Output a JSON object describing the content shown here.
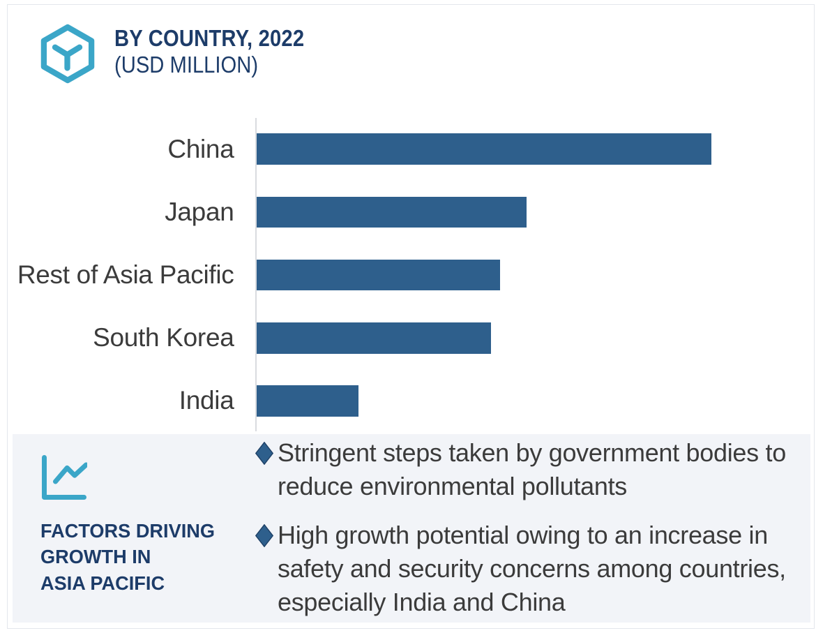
{
  "header": {
    "title": "BY COUNTRY, 2022",
    "subtitle": "(USD MILLION)",
    "icon": "hexagon-cube-icon",
    "title_color": "#1d3c69",
    "icon_color": "#3ba6c8"
  },
  "chart_data": {
    "type": "bar",
    "orientation": "horizontal",
    "title": "BY COUNTRY, 2022",
    "subtitle": "(USD MILLION)",
    "unit": "USD Million",
    "categories": [
      "China",
      "Japan",
      "Rest of Asia Pacific",
      "South Korea",
      "India"
    ],
    "values_relative_pct": [
      100,
      59.4,
      53.6,
      51.6,
      22.4
    ],
    "value_labels_shown": false,
    "axis_tick_labels_shown": false,
    "grid": false,
    "legend": false,
    "bar_color": "#2e5f8c",
    "label_color": "#3b3b3b"
  },
  "footer": {
    "icon": "line-chart-icon",
    "icon_color": "#3ba6c8",
    "background_color": "#f2f4f8",
    "title_lines": [
      "FACTORS DRIVING",
      "GROWTH IN",
      "ASIA PACIFIC"
    ],
    "title_color": "#1d3c69",
    "bullet_marker": "diamond",
    "bullet_marker_color": "#2e5f8c",
    "bullets": [
      "Stringent steps taken by government bodies to reduce environmental pollutants",
      "High growth potential owing to an increase in safety and security concerns among countries, especially India and China"
    ]
  }
}
